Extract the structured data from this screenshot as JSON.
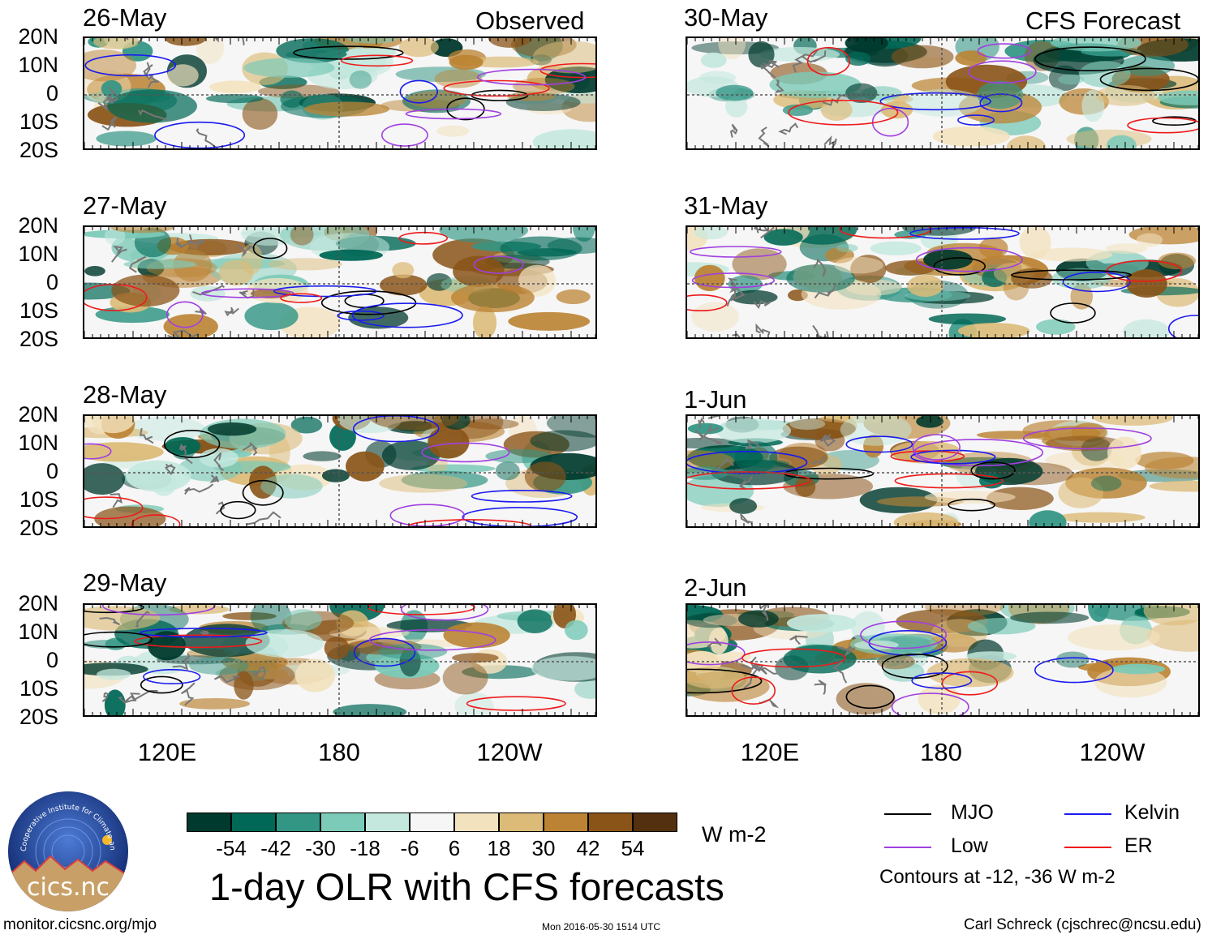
{
  "panels_left": {
    "header": "Observed",
    "dates": [
      "26-May",
      "27-May",
      "28-May",
      "29-May"
    ]
  },
  "panels_right": {
    "header": "CFS Forecast",
    "dates": [
      "30-May",
      "31-May",
      "1-Jun",
      "2-Jun"
    ]
  },
  "lat_labels": [
    "20N",
    "10N",
    "0",
    "10S",
    "20S"
  ],
  "lon_labels": [
    "120E",
    "180",
    "120W"
  ],
  "colorbar": {
    "colors": [
      "#00392d",
      "#006856",
      "#339685",
      "#7ccab8",
      "#c4e8de",
      "#f6f6f6",
      "#f3e2be",
      "#dcbb78",
      "#bb8333",
      "#8a5418",
      "#533010"
    ],
    "labels": [
      "-54",
      "-42",
      "-30",
      "-18",
      "-6",
      "6",
      "18",
      "30",
      "42",
      "54"
    ],
    "units": "W m-2"
  },
  "title": "1-day OLR with CFS forecasts",
  "legend": {
    "items": [
      {
        "label": "MJO",
        "color": "#000000"
      },
      {
        "label": "Kelvin",
        "color": "#1a1aee"
      },
      {
        "label": "Low",
        "color": "#a040e0"
      },
      {
        "label": "ER",
        "color": "#ee1a1a"
      }
    ],
    "note": "Contours at -12, -36 W m-2"
  },
  "logo": {
    "text": "cics.nc",
    "ring_text": "Cooperative Institute for Climate and Satellites"
  },
  "footer": {
    "left": "monitor.cicsnc.org/mjo",
    "center": "Mon 2016-05-30 1514 UTC",
    "right": "Carl Schreck (cjschrec@ncsu.edu)"
  }
}
